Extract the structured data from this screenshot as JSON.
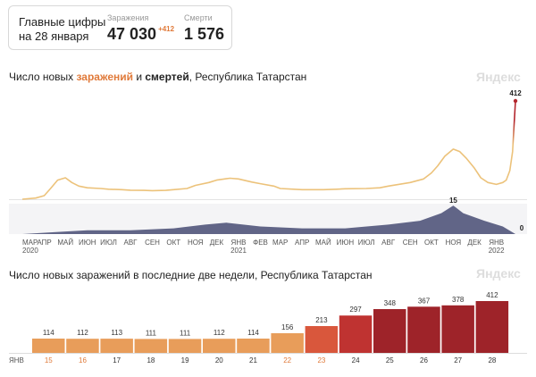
{
  "summary": {
    "heading_line1": "Главные цифры",
    "heading_line2": "на 28 января",
    "cases_label": "Заражения",
    "cases_value": "47 030",
    "cases_delta": "+412",
    "deaths_label": "Смерти",
    "deaths_value": "1 576"
  },
  "brand": "Яндекс",
  "colors": {
    "accent": "#e07a3a",
    "line_low": "#ecc27a",
    "line_high": "#b3262d",
    "deaths_bar": "#474b73"
  },
  "chart_data": [
    {
      "type": "line",
      "title_parts": [
        "Число новых ",
        "заражений",
        " и ",
        "смертей",
        ", Республика Татарстан"
      ],
      "x_ticks": [
        "МАР",
        "АПР",
        "МАЙ",
        "ИЮН",
        "ИЮЛ",
        "АВГ",
        "СЕН",
        "ОКТ",
        "НОЯ",
        "ДЕК",
        "ЯНВ",
        "ФЕВ",
        "МАР",
        "АПР",
        "МАЙ",
        "ИЮН",
        "ИЮЛ",
        "АВГ",
        "СЕН",
        "ОКТ",
        "НОЯ",
        "ДЕК",
        "ЯНВ"
      ],
      "x_tick_years": {
        "0": "2020",
        "10": "2021",
        "22": "2022"
      },
      "series": [
        {
          "x": [
            "2020-03-01",
            "2020-03-20",
            "2020-04-01",
            "2020-04-10",
            "2020-04-20",
            "2020-05-01",
            "2020-05-10",
            "2020-05-20",
            "2020-06-01",
            "2020-06-20",
            "2020-07-01",
            "2020-07-20",
            "2020-08-01",
            "2020-08-20",
            "2020-09-01",
            "2020-09-20",
            "2020-10-01",
            "2020-10-20",
            "2020-11-01",
            "2020-11-20",
            "2020-12-01",
            "2020-12-20",
            "2021-01-01",
            "2021-01-20",
            "2021-02-01",
            "2021-02-20",
            "2021-03-01",
            "2021-03-20",
            "2021-04-01",
            "2021-05-01",
            "2021-05-20",
            "2021-06-01",
            "2021-07-01",
            "2021-07-20",
            "2021-08-01",
            "2021-09-01",
            "2021-09-20",
            "2021-10-01",
            "2021-10-10",
            "2021-10-20",
            "2021-11-01",
            "2021-11-10",
            "2021-11-20",
            "2021-12-01",
            "2021-12-10",
            "2021-12-20",
            "2022-01-01",
            "2022-01-10",
            "2022-01-15",
            "2022-01-20",
            "2022-01-24",
            "2022-01-28"
          ],
          "values": [
            0,
            5,
            15,
            45,
            80,
            90,
            70,
            55,
            48,
            45,
            42,
            40,
            38,
            37,
            36,
            37,
            40,
            45,
            58,
            70,
            80,
            88,
            85,
            72,
            65,
            55,
            45,
            42,
            40,
            40,
            42,
            44,
            45,
            48,
            55,
            70,
            85,
            110,
            140,
            180,
            210,
            200,
            170,
            130,
            90,
            70,
            62,
            70,
            80,
            120,
            200,
            412
          ]
        },
        {
          "x": [
            "2020-03-01",
            "2020-04-15",
            "2020-06-01",
            "2020-08-01",
            "2020-10-01",
            "2020-11-15",
            "2020-12-15",
            "2021-02-01",
            "2021-04-01",
            "2021-06-01",
            "2021-08-01",
            "2021-09-15",
            "2021-10-15",
            "2021-11-01",
            "2021-11-15",
            "2021-12-15",
            "2022-01-10",
            "2022-01-28"
          ],
          "values": [
            0,
            1,
            2,
            2,
            3,
            5,
            6,
            4,
            3,
            3,
            5,
            7,
            11,
            15,
            11,
            7,
            4,
            0
          ]
        }
      ],
      "point_labels": [
        "412",
        "15",
        "0"
      ]
    },
    {
      "type": "bar",
      "title": "Число новых заражений в последние две недели, Республика Татарстан",
      "month_label": "ЯНВ",
      "categories": [
        "15",
        "16",
        "17",
        "18",
        "19",
        "20",
        "21",
        "22",
        "23",
        "24",
        "25",
        "26",
        "27",
        "28"
      ],
      "weekend": [
        true,
        true,
        false,
        false,
        false,
        false,
        false,
        true,
        true,
        false,
        false,
        false,
        false,
        false
      ],
      "values": [
        114,
        112,
        113,
        111,
        111,
        112,
        114,
        156,
        213,
        297,
        348,
        367,
        378,
        412
      ],
      "labels": [
        "114",
        "112",
        "113",
        "111",
        "111",
        "112",
        "114",
        "156",
        "213",
        "297",
        "348",
        "367",
        "378",
        "412"
      ],
      "colors": [
        "#e89d5a",
        "#e89d5a",
        "#e89d5a",
        "#e89d5a",
        "#e89d5a",
        "#e89d5a",
        "#e89d5a",
        "#e89d5a",
        "#d9573c",
        "#bf3331",
        "#9e2329",
        "#9e2329",
        "#9e2329",
        "#9e2329"
      ],
      "ylim": [
        0,
        430
      ]
    }
  ]
}
